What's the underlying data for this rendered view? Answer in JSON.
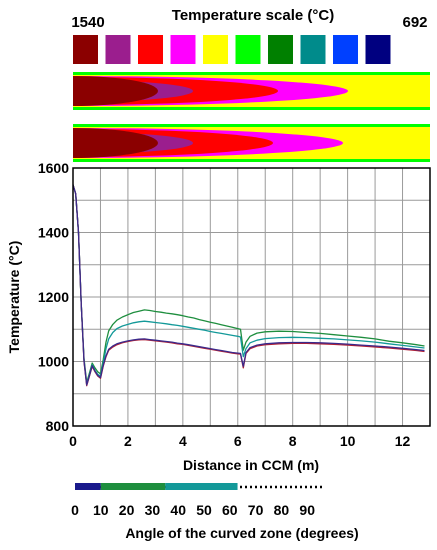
{
  "temperature_scale": {
    "title": "Temperature scale (°C)",
    "max_label": "1540",
    "min_label": "692",
    "swatches": [
      "#8b0000",
      "#9b1e8e",
      "#ff0000",
      "#ff00ff",
      "#ffff00",
      "#00ff00",
      "#008000",
      "#008b8b",
      "#0040ff",
      "#000080"
    ]
  },
  "strand_maps": {
    "colors": {
      "core": "#8b0000",
      "inner": "#9b1e8e",
      "mid": "#ff0000",
      "outer": "#ff00ff",
      "shell": "#ffff00",
      "edge": "#00ff00"
    }
  },
  "chart_data": {
    "type": "line",
    "xlabel": "Distance in CCM (m)",
    "ylabel": "Temperature (°C)",
    "xlim": [
      0,
      13
    ],
    "ylim": [
      800,
      1600
    ],
    "xticks": [
      "0",
      "2",
      "4",
      "6",
      "8",
      "10",
      "12"
    ],
    "yticks": [
      "800",
      "1000",
      "1200",
      "1400",
      "1600"
    ],
    "grid": true,
    "series": [
      {
        "color": "#1e8e3e",
        "points": [
          [
            0,
            1548
          ],
          [
            0.1,
            1520
          ],
          [
            0.2,
            1400
          ],
          [
            0.3,
            1180
          ],
          [
            0.4,
            1010
          ],
          [
            0.5,
            935
          ],
          [
            0.6,
            965
          ],
          [
            0.7,
            995
          ],
          [
            0.8,
            980
          ],
          [
            0.9,
            968
          ],
          [
            1.0,
            962
          ],
          [
            1.1,
            1005
          ],
          [
            1.2,
            1060
          ],
          [
            1.3,
            1095
          ],
          [
            1.45,
            1115
          ],
          [
            1.6,
            1128
          ],
          [
            1.8,
            1138
          ],
          [
            2.0,
            1145
          ],
          [
            2.2,
            1152
          ],
          [
            2.4,
            1156
          ],
          [
            2.6,
            1160
          ],
          [
            2.8,
            1158
          ],
          [
            3.0,
            1155
          ],
          [
            3.2,
            1153
          ],
          [
            3.4,
            1150
          ],
          [
            3.6,
            1148
          ],
          [
            3.8,
            1145
          ],
          [
            4.0,
            1142
          ],
          [
            4.2,
            1138
          ],
          [
            4.4,
            1135
          ],
          [
            4.6,
            1130
          ],
          [
            4.8,
            1126
          ],
          [
            5.0,
            1122
          ],
          [
            5.2,
            1118
          ],
          [
            5.4,
            1114
          ],
          [
            5.6,
            1110
          ],
          [
            5.8,
            1106
          ],
          [
            6.0,
            1102
          ],
          [
            6.1,
            1100
          ],
          [
            6.2,
            1035
          ],
          [
            6.3,
            1060
          ],
          [
            6.45,
            1078
          ],
          [
            6.7,
            1088
          ],
          [
            7.0,
            1092
          ],
          [
            7.5,
            1094
          ],
          [
            8.0,
            1093
          ],
          [
            8.5,
            1090
          ],
          [
            9.0,
            1087
          ],
          [
            9.5,
            1083
          ],
          [
            10.0,
            1079
          ],
          [
            10.5,
            1075
          ],
          [
            11.0,
            1070
          ],
          [
            11.5,
            1063
          ],
          [
            12.0,
            1058
          ],
          [
            12.5,
            1052
          ],
          [
            12.8,
            1048
          ]
        ]
      },
      {
        "color": "#139999",
        "points": [
          [
            0,
            1548
          ],
          [
            0.1,
            1520
          ],
          [
            0.2,
            1400
          ],
          [
            0.3,
            1180
          ],
          [
            0.4,
            1005
          ],
          [
            0.5,
            930
          ],
          [
            0.6,
            960
          ],
          [
            0.7,
            990
          ],
          [
            0.8,
            972
          ],
          [
            0.9,
            960
          ],
          [
            1.0,
            955
          ],
          [
            1.1,
            995
          ],
          [
            1.2,
            1040
          ],
          [
            1.3,
            1070
          ],
          [
            1.45,
            1090
          ],
          [
            1.6,
            1102
          ],
          [
            1.8,
            1110
          ],
          [
            2.0,
            1115
          ],
          [
            2.2,
            1120
          ],
          [
            2.4,
            1123
          ],
          [
            2.6,
            1125
          ],
          [
            2.8,
            1123
          ],
          [
            3.0,
            1121
          ],
          [
            3.2,
            1119
          ],
          [
            3.4,
            1117
          ],
          [
            3.6,
            1114
          ],
          [
            3.8,
            1112
          ],
          [
            4.0,
            1109
          ],
          [
            4.2,
            1106
          ],
          [
            4.4,
            1103
          ],
          [
            4.6,
            1100
          ],
          [
            4.8,
            1097
          ],
          [
            5.0,
            1093
          ],
          [
            5.2,
            1090
          ],
          [
            5.4,
            1087
          ],
          [
            5.6,
            1084
          ],
          [
            5.8,
            1081
          ],
          [
            6.0,
            1078
          ],
          [
            6.1,
            1076
          ],
          [
            6.2,
            1015
          ],
          [
            6.3,
            1040
          ],
          [
            6.45,
            1058
          ],
          [
            6.7,
            1066
          ],
          [
            7.0,
            1071
          ],
          [
            7.5,
            1074
          ],
          [
            8.0,
            1075
          ],
          [
            8.5,
            1074
          ],
          [
            9.0,
            1072
          ],
          [
            9.5,
            1070
          ],
          [
            10.0,
            1067
          ],
          [
            10.5,
            1064
          ],
          [
            11.0,
            1060
          ],
          [
            11.5,
            1055
          ],
          [
            12.0,
            1050
          ],
          [
            12.5,
            1045
          ],
          [
            12.8,
            1042
          ]
        ]
      },
      {
        "color": "#b22034",
        "points": [
          [
            0,
            1548
          ],
          [
            0.1,
            1520
          ],
          [
            0.2,
            1400
          ],
          [
            0.3,
            1180
          ],
          [
            0.4,
            1000
          ],
          [
            0.5,
            925
          ],
          [
            0.6,
            955
          ],
          [
            0.7,
            985
          ],
          [
            0.8,
            968
          ],
          [
            0.9,
            955
          ],
          [
            1.0,
            948
          ],
          [
            1.1,
            985
          ],
          [
            1.2,
            1015
          ],
          [
            1.3,
            1035
          ],
          [
            1.45,
            1045
          ],
          [
            1.6,
            1052
          ],
          [
            1.8,
            1058
          ],
          [
            2.0,
            1062
          ],
          [
            2.2,
            1065
          ],
          [
            2.4,
            1067
          ],
          [
            2.6,
            1068
          ],
          [
            2.8,
            1066
          ],
          [
            3.0,
            1064
          ],
          [
            3.2,
            1062
          ],
          [
            3.4,
            1060
          ],
          [
            3.6,
            1058
          ],
          [
            3.8,
            1055
          ],
          [
            4.0,
            1053
          ],
          [
            4.2,
            1050
          ],
          [
            4.4,
            1047
          ],
          [
            4.6,
            1044
          ],
          [
            4.8,
            1041
          ],
          [
            5.0,
            1038
          ],
          [
            5.2,
            1035
          ],
          [
            5.4,
            1032
          ],
          [
            5.6,
            1029
          ],
          [
            5.8,
            1026
          ],
          [
            6.0,
            1024
          ],
          [
            6.1,
            1023
          ],
          [
            6.2,
            980
          ],
          [
            6.3,
            1025
          ],
          [
            6.45,
            1040
          ],
          [
            6.7,
            1048
          ],
          [
            7.0,
            1052
          ],
          [
            7.5,
            1055
          ],
          [
            8.0,
            1056
          ],
          [
            8.5,
            1056
          ],
          [
            9.0,
            1055
          ],
          [
            9.5,
            1053
          ],
          [
            10.0,
            1051
          ],
          [
            10.5,
            1048
          ],
          [
            11.0,
            1045
          ],
          [
            11.5,
            1042
          ],
          [
            12.0,
            1038
          ],
          [
            12.5,
            1034
          ],
          [
            12.8,
            1031
          ]
        ]
      },
      {
        "color": "#3a2a8c",
        "points": [
          [
            0,
            1548
          ],
          [
            0.1,
            1520
          ],
          [
            0.2,
            1400
          ],
          [
            0.3,
            1180
          ],
          [
            0.4,
            1002
          ],
          [
            0.5,
            927
          ],
          [
            0.6,
            957
          ],
          [
            0.7,
            987
          ],
          [
            0.8,
            970
          ],
          [
            0.9,
            957
          ],
          [
            1.0,
            950
          ],
          [
            1.1,
            988
          ],
          [
            1.2,
            1018
          ],
          [
            1.3,
            1038
          ],
          [
            1.45,
            1048
          ],
          [
            1.6,
            1055
          ],
          [
            1.8,
            1060
          ],
          [
            2.0,
            1064
          ],
          [
            2.2,
            1067
          ],
          [
            2.4,
            1069
          ],
          [
            2.6,
            1070
          ],
          [
            2.8,
            1068
          ],
          [
            3.0,
            1066
          ],
          [
            3.2,
            1064
          ],
          [
            3.4,
            1062
          ],
          [
            3.6,
            1060
          ],
          [
            3.8,
            1057
          ],
          [
            4.0,
            1055
          ],
          [
            4.2,
            1052
          ],
          [
            4.4,
            1049
          ],
          [
            4.6,
            1046
          ],
          [
            4.8,
            1043
          ],
          [
            5.0,
            1040
          ],
          [
            5.2,
            1037
          ],
          [
            5.4,
            1034
          ],
          [
            5.6,
            1031
          ],
          [
            5.8,
            1028
          ],
          [
            6.0,
            1026
          ],
          [
            6.1,
            1025
          ],
          [
            6.2,
            985
          ],
          [
            6.3,
            1028
          ],
          [
            6.45,
            1043
          ],
          [
            6.7,
            1051
          ],
          [
            7.0,
            1055
          ],
          [
            7.5,
            1058
          ],
          [
            8.0,
            1059
          ],
          [
            8.5,
            1059
          ],
          [
            9.0,
            1058
          ],
          [
            9.5,
            1056
          ],
          [
            10.0,
            1054
          ],
          [
            10.5,
            1051
          ],
          [
            11.0,
            1048
          ],
          [
            11.5,
            1045
          ],
          [
            12.0,
            1041
          ],
          [
            12.5,
            1037
          ],
          [
            12.8,
            1034
          ]
        ]
      }
    ]
  },
  "angle_axis": {
    "label": "Angle of the curved zone (degrees)",
    "ticks": [
      "0",
      "10",
      "20",
      "30",
      "40",
      "50",
      "60",
      "70",
      "80",
      "90"
    ],
    "bands": [
      {
        "from": 0,
        "to": 10,
        "color": "#1a1a8c"
      },
      {
        "from": 10,
        "to": 35,
        "color": "#1e8e3e"
      },
      {
        "from": 35,
        "to": 63,
        "color": "#139999"
      }
    ]
  }
}
